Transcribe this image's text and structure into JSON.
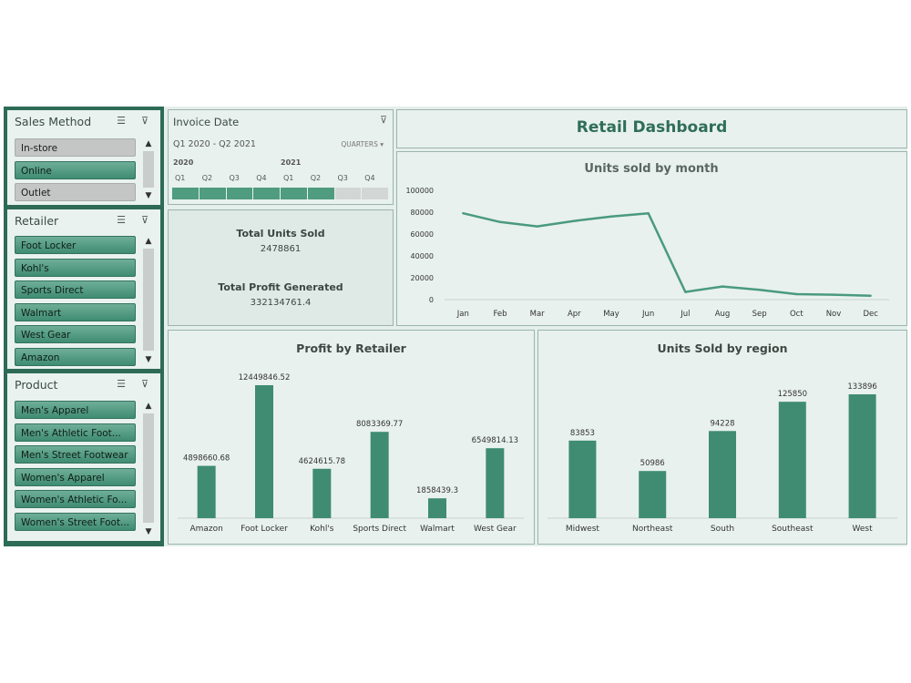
{
  "dashboard_title": "Retail Dashboard",
  "slicers": {
    "sales_method": {
      "title": "Sales Method",
      "items": [
        {
          "label": "In-store",
          "selected": false
        },
        {
          "label": "Online",
          "selected": true
        },
        {
          "label": "Outlet",
          "selected": false
        }
      ]
    },
    "retailer": {
      "title": "Retailer",
      "items": [
        {
          "label": "Foot Locker",
          "selected": true
        },
        {
          "label": "Kohl's",
          "selected": true
        },
        {
          "label": "Sports Direct",
          "selected": true
        },
        {
          "label": "Walmart",
          "selected": true
        },
        {
          "label": "West Gear",
          "selected": true
        },
        {
          "label": "Amazon",
          "selected": true
        }
      ]
    },
    "product": {
      "title": "Product",
      "items": [
        {
          "label": "Men's Apparel",
          "selected": true
        },
        {
          "label": "Men's Athletic Foot...",
          "selected": true
        },
        {
          "label": "Men's Street Footwear",
          "selected": true
        },
        {
          "label": "Women's Apparel",
          "selected": true
        },
        {
          "label": "Women's Athletic Fo...",
          "selected": true
        },
        {
          "label": "Women's Street Foot...",
          "selected": true
        }
      ]
    }
  },
  "timeline": {
    "title": "Invoice Date",
    "range": "Q1 2020 - Q2 2021",
    "level": "QUARTERS",
    "years": [
      "2020",
      "2021"
    ],
    "quarters": [
      "Q1",
      "Q2",
      "Q3",
      "Q4",
      "Q1",
      "Q2",
      "Q3",
      "Q4"
    ],
    "selected_count": 6
  },
  "kpis": {
    "units_label": "Total Units Sold",
    "units_value": "2478861",
    "profit_label": "Total Profit Generated",
    "profit_value": "332134761.4"
  },
  "chart_data": [
    {
      "type": "line",
      "title": "Units sold by month",
      "categories": [
        "Jan",
        "Feb",
        "Mar",
        "Apr",
        "May",
        "Jun",
        "Jul",
        "Aug",
        "Sep",
        "Oct",
        "Nov",
        "Dec"
      ],
      "values": [
        79000,
        71000,
        67000,
        72000,
        76000,
        79000,
        7000,
        12000,
        9000,
        5000,
        4500,
        3500
      ],
      "yticks": [
        "0",
        "20000",
        "40000",
        "60000",
        "80000",
        "100000"
      ],
      "ylim": [
        0,
        100000
      ],
      "color": "#4a9a7e"
    },
    {
      "type": "bar",
      "title": "Profit by Retailer",
      "categories": [
        "Amazon",
        "Foot Locker",
        "Kohl's",
        "Sports Direct",
        "Walmart",
        "West Gear"
      ],
      "values": [
        4898660.68,
        12449846.52,
        4624615.78,
        8083369.77,
        1858439.3,
        6549814.13
      ],
      "labels": [
        "4898660.68",
        "12449846.52",
        "4624615.78",
        "8083369.77",
        "1858439.3",
        "6549814.13"
      ],
      "color": "#3f8c72"
    },
    {
      "type": "bar",
      "title": "Units Sold by region",
      "categories": [
        "Midwest",
        "Northeast",
        "South",
        "Southeast",
        "West"
      ],
      "values": [
        83853,
        50986,
        94228,
        125850,
        133896
      ],
      "labels": [
        "83853",
        "50986",
        "94228",
        "125850",
        "133896"
      ],
      "color": "#3f8c72"
    }
  ]
}
